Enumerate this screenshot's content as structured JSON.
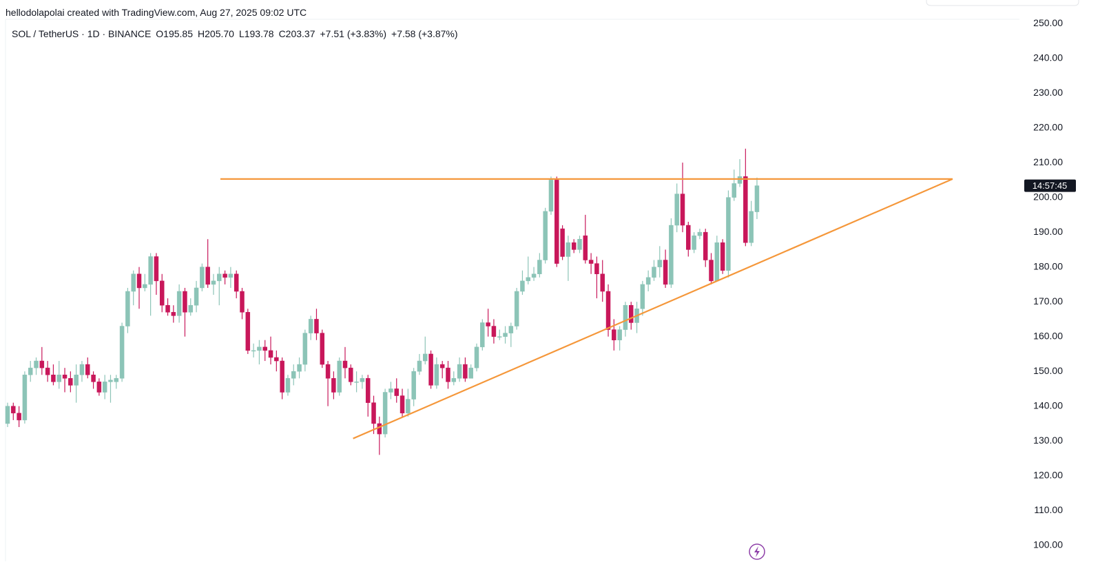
{
  "credit": "hellodolapolai created with TradingView.com, Aug 27, 2025 09:02 UTC",
  "chart_data": {
    "type": "candlestick",
    "legend": [
      "SOL / TetherUS · 1D · BINANCE",
      "O195.85",
      "H205.70",
      "L193.78",
      "C203.37",
      "+7.51 (+3.83%)",
      "+7.58 (+3.87%)"
    ],
    "countdown": "14:57:45",
    "up_color": "#8cc4b7",
    "down_color": "#c8175a",
    "open": [
      135,
      140,
      138,
      136,
      149,
      151,
      153,
      151,
      149,
      147,
      149,
      148,
      146,
      149,
      152,
      149,
      147,
      144,
      147,
      147,
      148,
      163,
      173,
      178,
      174,
      175,
      183,
      176,
      169,
      167,
      166,
      173,
      167,
      169,
      174,
      180,
      175,
      176,
      178,
      177,
      178,
      173,
      167,
      156,
      156,
      157,
      156,
      154,
      153,
      144,
      148,
      150,
      152,
      161,
      165,
      161,
      152,
      148,
      144,
      153,
      151,
      147,
      147,
      148,
      141,
      135,
      132,
      144,
      145,
      143,
      138,
      142,
      150,
      153,
      155,
      146,
      152,
      151,
      147,
      148,
      152,
      148,
      151,
      157,
      164,
      163,
      160,
      160,
      161,
      163,
      173,
      176,
      177,
      178,
      182,
      196,
      205,
      191,
      183,
      187,
      185,
      189,
      182,
      181,
      178,
      173,
      162,
      159,
      162,
      169,
      164,
      168,
      175,
      177,
      180,
      182,
      175,
      192,
      201,
      192,
      185,
      189,
      190,
      182,
      176,
      187,
      179,
      200,
      204,
      206,
      187,
      195.85
    ],
    "high": [
      141,
      141,
      140,
      150,
      153,
      154,
      157,
      153,
      152,
      153,
      151,
      150,
      152,
      153,
      154,
      150,
      148,
      149,
      149,
      149,
      164,
      174,
      179,
      180,
      178,
      184,
      184,
      178,
      171,
      169,
      175,
      174,
      171,
      176,
      181,
      188,
      178,
      180,
      179,
      180,
      179,
      174,
      168,
      158,
      159,
      159,
      160,
      156,
      154,
      149,
      152,
      154,
      162,
      166,
      168,
      162,
      153,
      150,
      154,
      157,
      152,
      150,
      149,
      149,
      143,
      137,
      145,
      147,
      148,
      145,
      145,
      151,
      155,
      160,
      156,
      154,
      153,
      153,
      150,
      154,
      154,
      152,
      158,
      165,
      168,
      165,
      162,
      163,
      164,
      174,
      179,
      183,
      180,
      184,
      197,
      206,
      206,
      192,
      189,
      188,
      189,
      195,
      184,
      183,
      182,
      175,
      165,
      163,
      170,
      170,
      170,
      176,
      179,
      182,
      186,
      185,
      194,
      204,
      210,
      193,
      190,
      191,
      191,
      184,
      189,
      188,
      202,
      208,
      211,
      214,
      199,
      205.7
    ],
    "low": [
      134,
      136,
      134,
      135,
      147,
      149,
      149,
      147,
      146,
      145,
      144,
      144,
      141,
      147,
      148,
      145,
      143,
      142,
      141,
      145,
      147,
      161,
      169,
      168,
      173,
      166,
      172,
      167,
      166,
      164,
      164,
      160,
      166,
      167,
      173,
      174,
      172,
      169,
      175,
      174,
      171,
      165,
      155,
      154,
      152,
      153,
      152,
      150,
      142,
      143,
      146,
      148,
      150,
      159,
      159,
      151,
      140,
      142,
      143,
      148,
      146,
      144,
      145,
      137,
      132,
      126,
      131,
      142,
      141,
      137,
      137,
      140,
      149,
      152,
      145,
      145,
      148,
      145,
      146,
      147,
      147,
      148,
      150,
      156,
      160,
      158,
      159,
      158,
      157,
      162,
      172,
      175,
      176,
      177,
      181,
      195,
      180,
      182,
      176,
      184,
      184,
      181,
      178,
      171,
      170,
      160,
      156,
      156,
      160,
      162,
      161,
      166,
      173,
      176,
      177,
      174,
      174,
      190,
      190,
      183,
      184,
      188,
      180,
      175,
      176,
      178,
      177,
      199,
      203,
      186,
      186,
      193.78
    ],
    "close": [
      140,
      138,
      136,
      149,
      151,
      153,
      151,
      149,
      147,
      149,
      148,
      146,
      149,
      152,
      149,
      147,
      144,
      147,
      147.5,
      148,
      163,
      173,
      178,
      174,
      175,
      183,
      176,
      169,
      167,
      166,
      173,
      167,
      169,
      174,
      180,
      175,
      176,
      178,
      177,
      178,
      173,
      167,
      156,
      156,
      157,
      156,
      154,
      153,
      144,
      148,
      150,
      152,
      161,
      165,
      161,
      152,
      148,
      144,
      153,
      151,
      147,
      147,
      148,
      141,
      135,
      132,
      144,
      145,
      143,
      138,
      142,
      150,
      153,
      155,
      146,
      152,
      151,
      147,
      148,
      152,
      148,
      151,
      157,
      164,
      163,
      160,
      160,
      161,
      163,
      173,
      176,
      177,
      178,
      182,
      196,
      205,
      181,
      183,
      187,
      185,
      188,
      182,
      181,
      178,
      173,
      162,
      159,
      162,
      169,
      164,
      168,
      175,
      177,
      180,
      182,
      175,
      192,
      201,
      192,
      185,
      189,
      190,
      182,
      176,
      187,
      179,
      200,
      204,
      206,
      187,
      196,
      203.37
    ],
    "ylim": [
      95.4,
      251.2
    ],
    "yticks": [
      {
        "value": 100,
        "label": "100.00"
      },
      {
        "value": 110,
        "label": "110.00"
      },
      {
        "value": 120,
        "label": "120.00"
      },
      {
        "value": 130,
        "label": "130.00"
      },
      {
        "value": 140,
        "label": "140.00"
      },
      {
        "value": 150,
        "label": "150.00"
      },
      {
        "value": 160,
        "label": "160.00"
      },
      {
        "value": 170,
        "label": "170.00"
      },
      {
        "value": 180,
        "label": "180.00"
      },
      {
        "value": 190,
        "label": "190.00"
      },
      {
        "value": 200,
        "label": "200.00"
      },
      {
        "value": 210,
        "label": "210.00"
      },
      {
        "value": 220,
        "label": "220.00"
      },
      {
        "value": 230,
        "label": "230.00"
      },
      {
        "value": 240,
        "label": "240.00"
      },
      {
        "value": 250,
        "label": "250.00"
      }
    ],
    "trendline_color": "#f5973a",
    "trendlines": [
      {
        "x": [
          37.2,
          165.2
        ],
        "y": [
          205.3,
          205.3
        ]
      },
      {
        "x": [
          60.4,
          165.2
        ],
        "y": [
          130.7,
          205.3
        ]
      }
    ]
  }
}
